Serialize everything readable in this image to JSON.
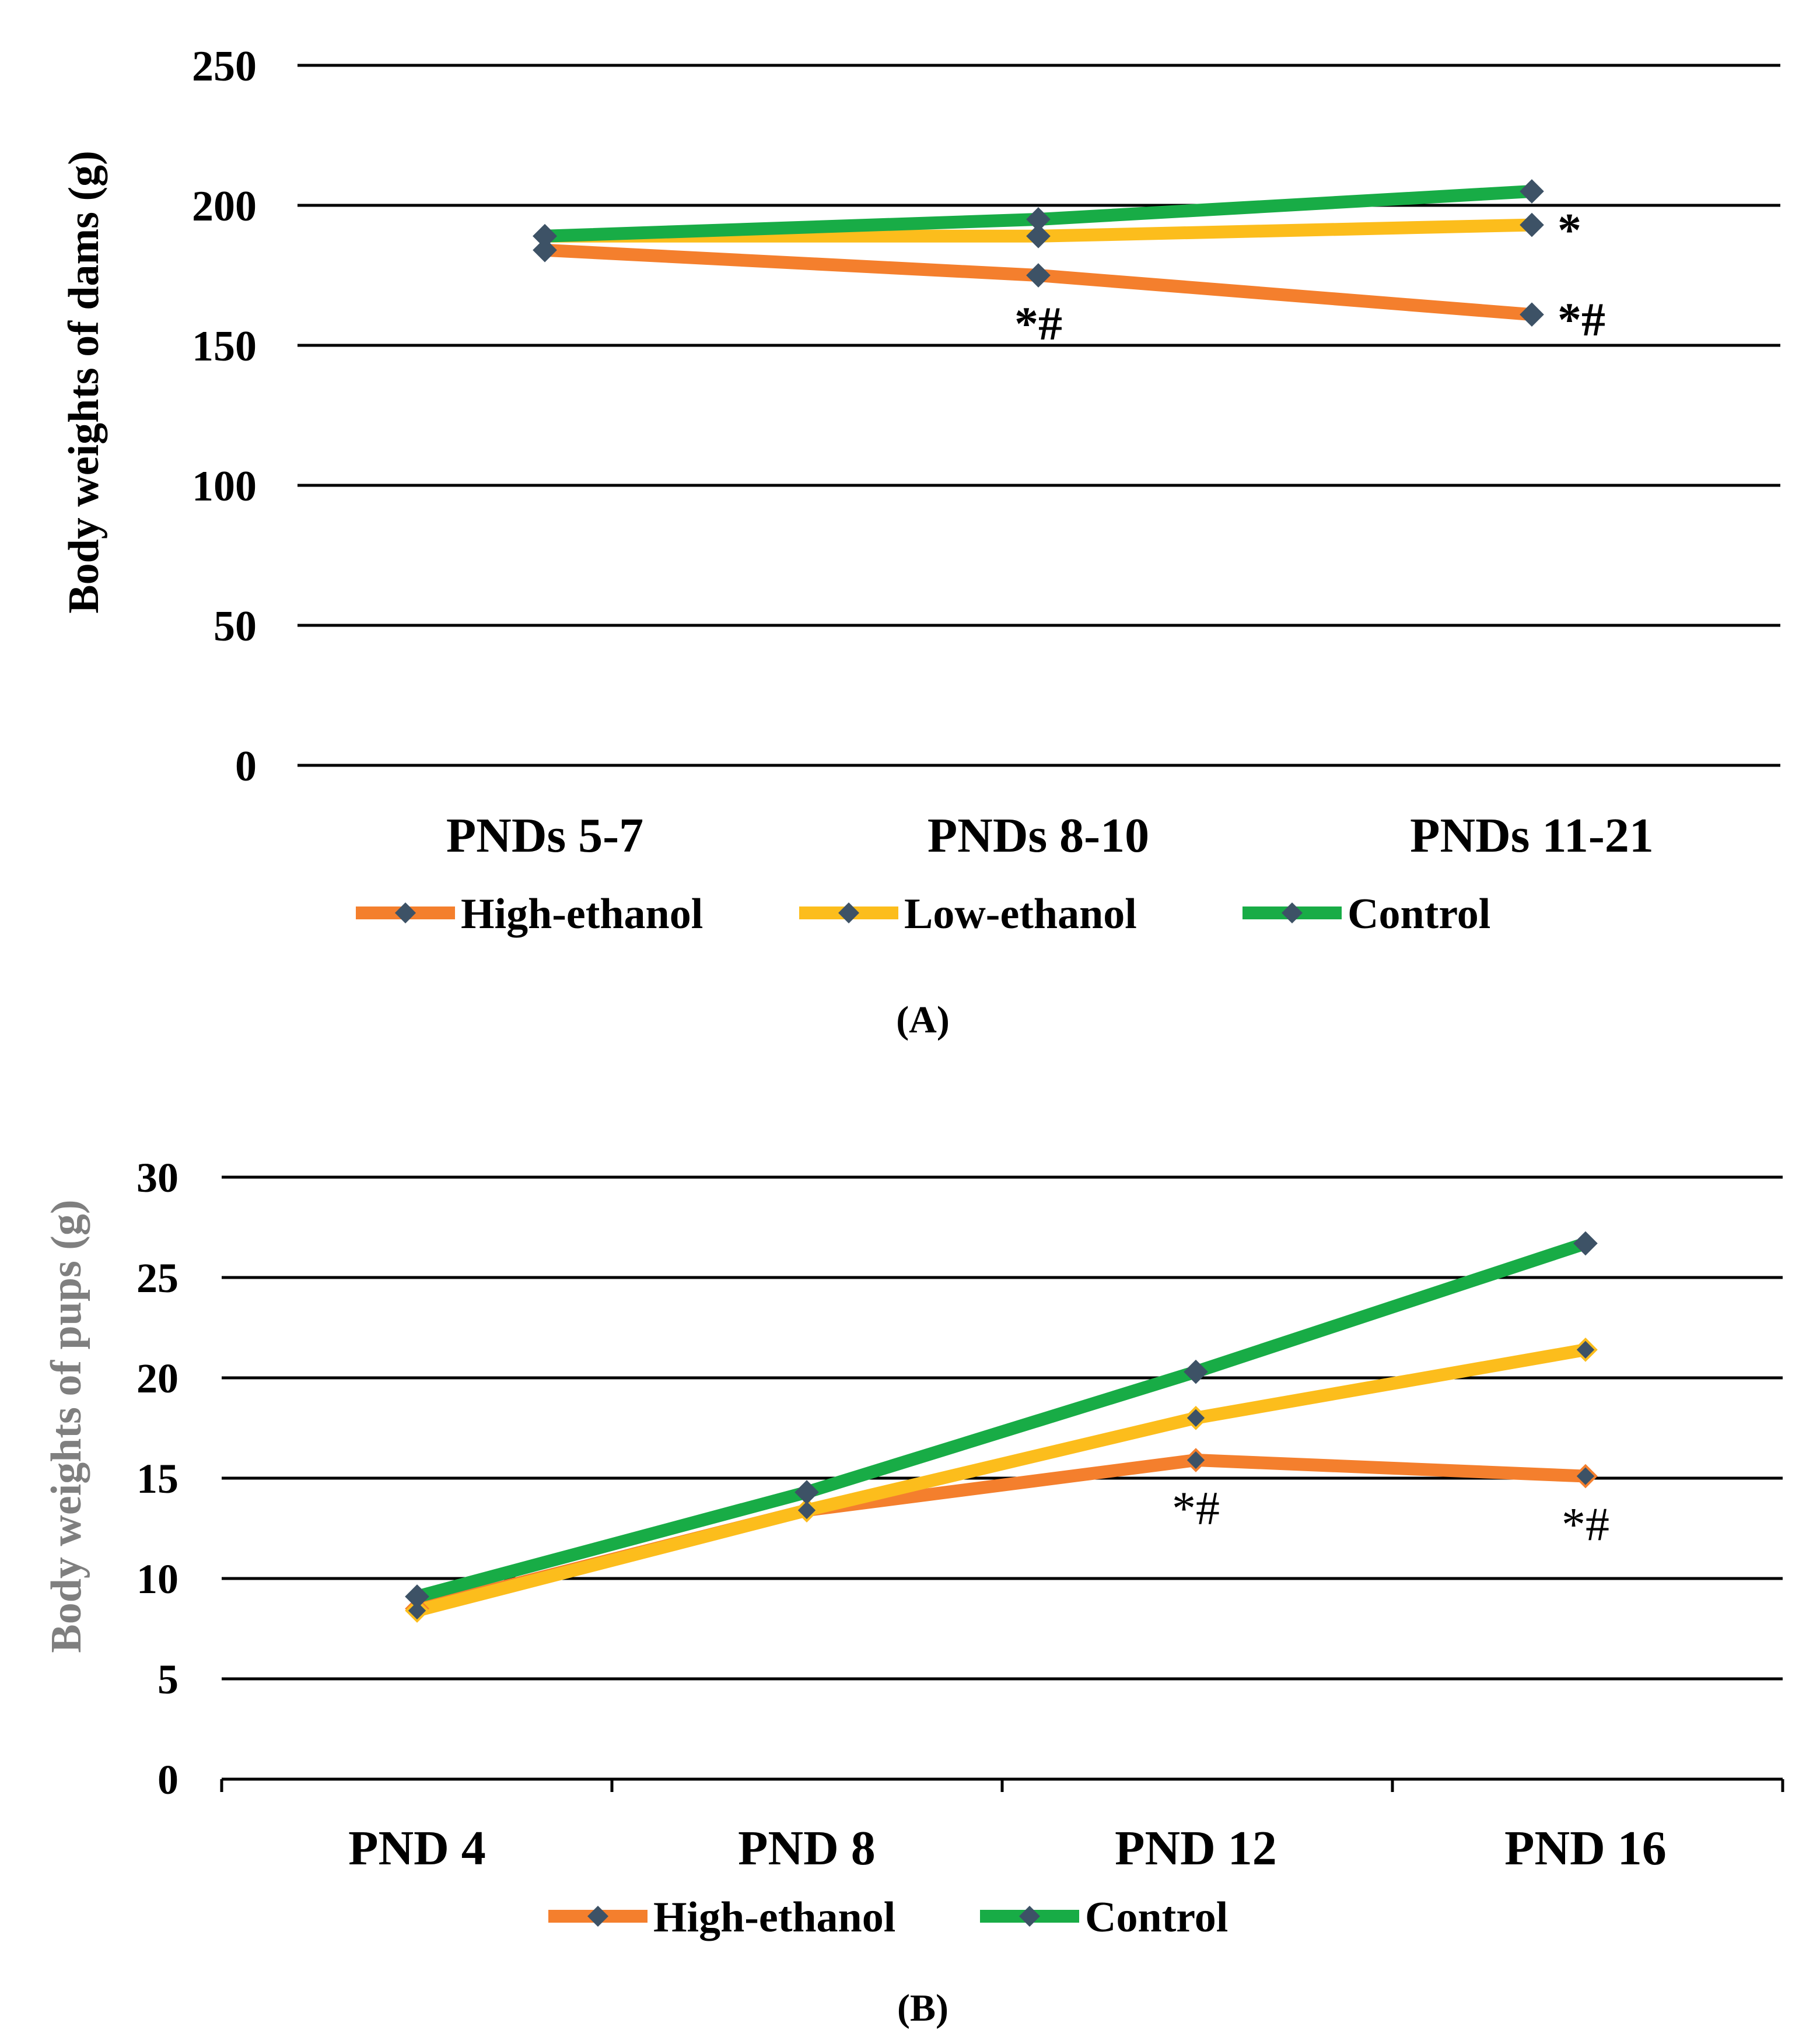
{
  "colors": {
    "high_ethanol": "#f47f2d",
    "low_ethanol": "#fcbd1c",
    "control": "#18ac46",
    "marker": "#3d5266",
    "grid": "#000000",
    "text": "#000000",
    "ylabel_b": "#7f7f7f"
  },
  "chart_data": [
    {
      "type": "line",
      "panel_label": "(A)",
      "ylabel": "Body weights of dams (g)",
      "xlabel": "",
      "categories": [
        "PNDs 5-7",
        "PNDs 8-10",
        "PNDs 11-21"
      ],
      "ylim": [
        0,
        250
      ],
      "yticks": [
        "0",
        "50",
        "100",
        "150",
        "200",
        "250"
      ],
      "grid": true,
      "legend_position": "bottom",
      "series": [
        {
          "name": "High-ethanol",
          "color_key": "high_ethanol",
          "values": [
            184,
            175,
            161
          ]
        },
        {
          "name": "Low-ethanol",
          "color_key": "low_ethanol",
          "values": [
            189,
            189,
            193
          ]
        },
        {
          "name": "Control",
          "color_key": "control",
          "values": [
            189,
            195,
            205
          ]
        }
      ],
      "annotations": [
        {
          "text": "*#",
          "category": 1,
          "series": "High-ethanol",
          "position": "below"
        },
        {
          "text": "*",
          "category": 2,
          "series": "Low-ethanol",
          "position": "right"
        },
        {
          "text": "*#",
          "category": 2,
          "series": "High-ethanol",
          "position": "right"
        }
      ]
    },
    {
      "type": "line",
      "panel_label": "(B)",
      "ylabel": "Body weights of pups (g)",
      "xlabel": "",
      "categories": [
        "PND 4",
        "PND 8",
        "PND 12",
        "PND 16"
      ],
      "ylim": [
        0,
        30
      ],
      "yticks": [
        "0",
        "5",
        "10",
        "15",
        "20",
        "25",
        "30"
      ],
      "grid": true,
      "legend_position": "bottom",
      "series": [
        {
          "name": "High-ethanol",
          "color_key": "high_ethanol",
          "values": [
            8.5,
            13.4,
            15.9,
            15.1
          ],
          "in_legend": true
        },
        {
          "name": "Low-ethanol",
          "color_key": "low_ethanol",
          "values": [
            8.4,
            13.4,
            18.0,
            21.4
          ],
          "in_legend": false
        },
        {
          "name": "Control",
          "color_key": "control",
          "values": [
            9.1,
            14.3,
            20.3,
            26.7
          ],
          "in_legend": true
        }
      ],
      "annotations": [
        {
          "text": "*#",
          "category": 2,
          "series": "High-ethanol",
          "position": "below"
        },
        {
          "text": "*#",
          "category": 3,
          "series": "High-ethanol",
          "position": "below"
        }
      ]
    }
  ]
}
